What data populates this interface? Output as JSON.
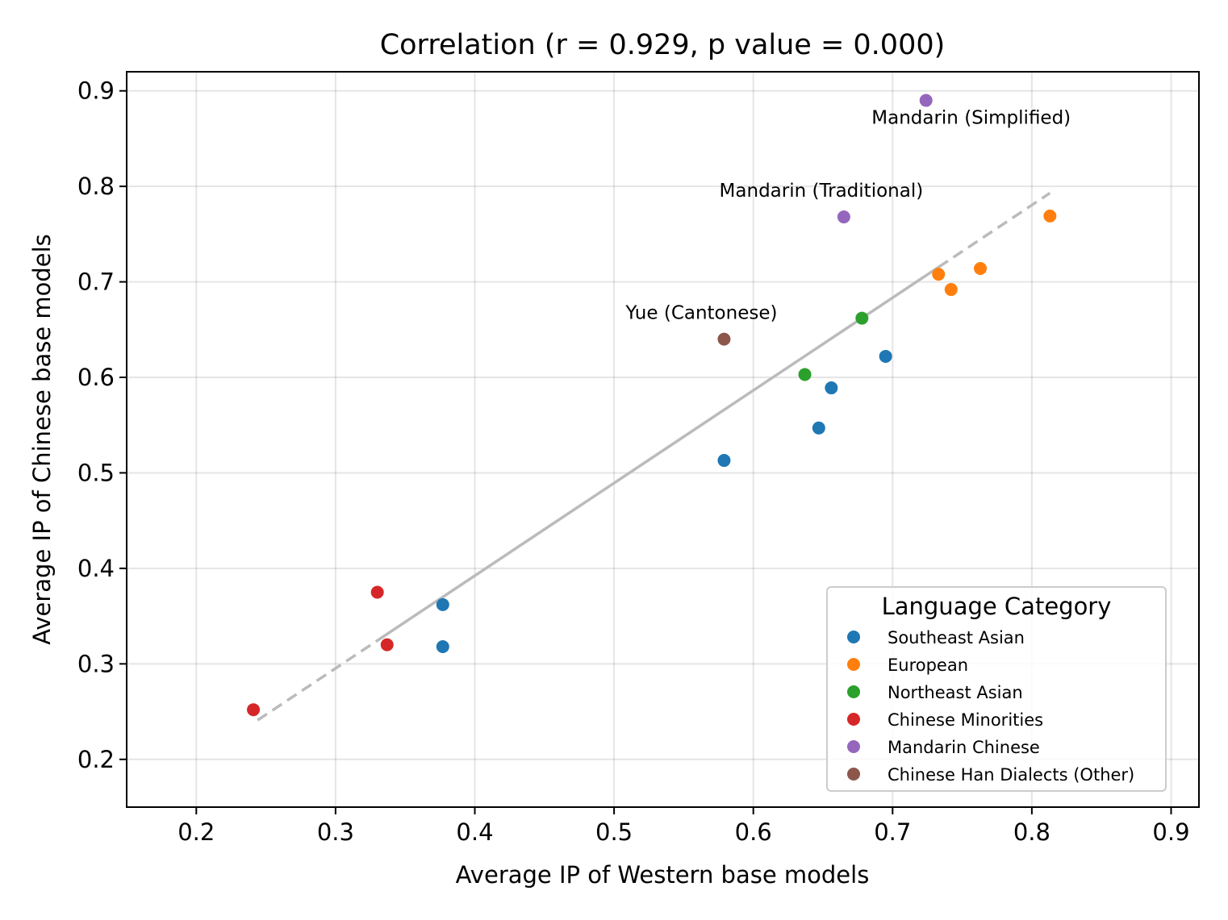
{
  "chart_data": {
    "type": "scatter",
    "title": "Correlation (r = 0.929, p value = 0.000)",
    "xlabel": "Average IP of Western base models",
    "ylabel": "Average IP of Chinese base models",
    "xlim": [
      0.15,
      0.92
    ],
    "ylim": [
      0.15,
      0.92
    ],
    "xticks": [
      0.2,
      0.3,
      0.4,
      0.5,
      0.6,
      0.7,
      0.8,
      0.9
    ],
    "yticks": [
      0.2,
      0.3,
      0.4,
      0.5,
      0.6,
      0.7,
      0.8,
      0.9
    ],
    "grid": true,
    "legend_title": "Language Category",
    "legend_position": "lower-right",
    "series": [
      {
        "name": "Southeast Asian",
        "color": "#1f77b4",
        "points": [
          [
            0.377,
            0.362
          ],
          [
            0.377,
            0.318
          ],
          [
            0.579,
            0.513
          ],
          [
            0.647,
            0.547
          ],
          [
            0.656,
            0.589
          ],
          [
            0.695,
            0.622
          ]
        ]
      },
      {
        "name": "European",
        "color": "#ff7f0e",
        "points": [
          [
            0.733,
            0.708
          ],
          [
            0.742,
            0.692
          ],
          [
            0.763,
            0.714
          ],
          [
            0.813,
            0.769
          ]
        ]
      },
      {
        "name": "Northeast Asian",
        "color": "#2ca02c",
        "points": [
          [
            0.637,
            0.603
          ],
          [
            0.678,
            0.662
          ]
        ]
      },
      {
        "name": "Chinese Minorities",
        "color": "#d62728",
        "points": [
          [
            0.241,
            0.252
          ],
          [
            0.33,
            0.375
          ],
          [
            0.337,
            0.32
          ]
        ]
      },
      {
        "name": "Mandarin Chinese",
        "color": "#9467bd",
        "points": [
          [
            0.724,
            0.89
          ],
          [
            0.665,
            0.768
          ]
        ]
      },
      {
        "name": "Chinese Han Dialects (Other)",
        "color": "#8c564b",
        "points": [
          [
            0.579,
            0.64
          ]
        ]
      }
    ],
    "annotations": [
      {
        "text": "Mandarin (Simplified)",
        "x": 0.724,
        "y": 0.89,
        "position": "below-right"
      },
      {
        "text": "Mandarin (Traditional)",
        "x": 0.665,
        "y": 0.768,
        "position": "above-left"
      },
      {
        "text": "Yue (Cantonese)",
        "x": 0.579,
        "y": 0.64,
        "position": "above-left"
      }
    ],
    "regression": {
      "x_start": 0.244,
      "y_start": 0.241,
      "x_end": 0.813,
      "y_end": 0.793,
      "solid_x_range": [
        0.33,
        0.733
      ],
      "color": "#bbbbbb"
    }
  }
}
